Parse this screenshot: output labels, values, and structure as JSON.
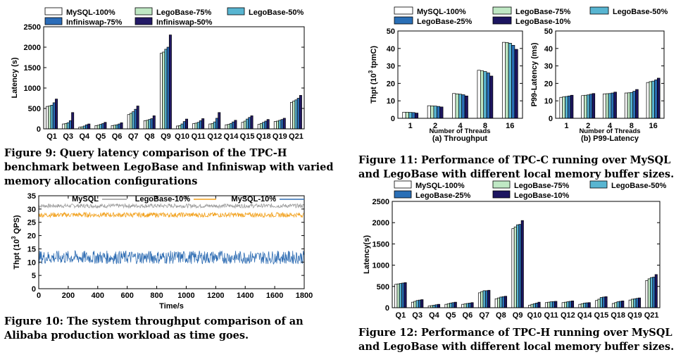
{
  "colors": {
    "MySQL-100%": "#ffffff",
    "LegoBase-75%": "#bfe8c4",
    "LegoBase-50%": "#58b5d1",
    "LegoBase-25%": "#2a6fb6",
    "LegoBase-10%": "#1c1560",
    "Infiniswap-75%": "#2b6cb8",
    "Infiniswap-50%": "#231a66",
    "MySQL": "#9a9a9a",
    "LegoBase-10% line": "#f2a11d",
    "MySQL-10% line": "#2f6db3"
  },
  "captions": {
    "fig9": "Figure 9: Query latency comparison of the TPC-H benchmark between LegoBase and Infiniswap with varied memory allocation configurations",
    "fig10": "Figure 10: The system throughput comparison of an Alibaba production workload as time goes.",
    "fig11": "Figure 11: Performance of TPC-C running over MySQL and LegoBase with different local memory buffer sizes.",
    "fig12": "Figure 12: Performance of TPC-H running over MySQL and LegoBase with different local memory buffer sizes."
  },
  "chart_data": [
    {
      "id": "fig9",
      "type": "bar",
      "ylabel": "Latency (s)",
      "xlabel": "",
      "ylim": [
        0,
        2500
      ],
      "yticks": [
        0,
        500,
        1000,
        1500,
        2000,
        2500
      ],
      "categories": [
        "Q1",
        "Q3",
        "Q4",
        "Q5",
        "Q6",
        "Q7",
        "Q8",
        "Q9",
        "Q10",
        "Q11",
        "Q12",
        "Q14",
        "Q15",
        "Q18",
        "Q19",
        "Q21"
      ],
      "series": [
        {
          "name": "MySQL-100%",
          "values": [
            550,
            120,
            40,
            80,
            80,
            350,
            200,
            1850,
            70,
            130,
            120,
            100,
            160,
            110,
            180,
            650
          ]
        },
        {
          "name": "LegoBase-75%",
          "values": [
            560,
            130,
            50,
            90,
            90,
            380,
            210,
            1880,
            80,
            140,
            130,
            110,
            190,
            130,
            190,
            680
          ]
        },
        {
          "name": "LegoBase-50%",
          "values": [
            580,
            150,
            70,
            110,
            100,
            420,
            230,
            1950,
            120,
            160,
            170,
            130,
            240,
            160,
            210,
            710
          ]
        },
        {
          "name": "Infiniswap-75%",
          "values": [
            640,
            200,
            100,
            130,
            120,
            480,
            250,
            2000,
            180,
            200,
            260,
            170,
            280,
            190,
            230,
            750
          ]
        },
        {
          "name": "Infiniswap-50%",
          "values": [
            730,
            400,
            120,
            160,
            150,
            560,
            320,
            2300,
            240,
            250,
            400,
            210,
            320,
            230,
            260,
            820
          ]
        }
      ],
      "legend": "top-left"
    },
    {
      "id": "fig10",
      "type": "line",
      "ylabel": "Thpt (10³ QPS)",
      "xlabel": "Time/s",
      "xlim": [
        0,
        1800
      ],
      "ylim": [
        0,
        35
      ],
      "xticks": [
        0,
        200,
        400,
        600,
        800,
        1000,
        1200,
        1400,
        1600,
        1800
      ],
      "yticks": [
        0,
        5,
        10,
        15,
        20,
        25,
        30,
        35
      ],
      "series": [
        {
          "name": "MySQL",
          "mean": 31.2,
          "range": [
            30,
            32.5
          ]
        },
        {
          "name": "LegoBase-10%",
          "mean": 27.8,
          "range": [
            26,
            29
          ]
        },
        {
          "name": "MySQL-10%",
          "mean": 11.8,
          "range": [
            9,
            14
          ]
        }
      ],
      "legend": "top"
    },
    {
      "id": "fig11a",
      "type": "bar",
      "title": "(a) Throughput",
      "xlabel": "Number of Threads",
      "ylabel": "Thpt (10³ tpmC)",
      "ylim": [
        0,
        50
      ],
      "yticks": [
        0,
        10,
        20,
        30,
        40,
        50
      ],
      "categories": [
        "1",
        "2",
        "4",
        "8",
        "16"
      ],
      "series": [
        {
          "name": "MySQL-100%",
          "values": [
            3.5,
            7.2,
            14.2,
            27.5,
            43.5
          ]
        },
        {
          "name": "LegoBase-75%",
          "values": [
            3.5,
            7.1,
            14.0,
            27.2,
            43.4
          ]
        },
        {
          "name": "LegoBase-50%",
          "values": [
            3.4,
            7.0,
            13.8,
            26.8,
            43.0
          ]
        },
        {
          "name": "LegoBase-25%",
          "values": [
            3.3,
            6.8,
            13.5,
            26.0,
            41.8
          ]
        },
        {
          "name": "LegoBase-10%",
          "values": [
            3.0,
            6.5,
            12.8,
            24.2,
            39.5
          ]
        }
      ],
      "legend": "top"
    },
    {
      "id": "fig11b",
      "type": "bar",
      "title": "(b) P99-Latency",
      "xlabel": "Number of Threads",
      "ylabel": "P99-Latency (ms)",
      "ylim": [
        0,
        50
      ],
      "yticks": [
        0,
        10,
        20,
        30,
        40,
        50
      ],
      "categories": [
        "1",
        "2",
        "4",
        "8",
        "16"
      ],
      "series": [
        {
          "name": "MySQL-100%",
          "values": [
            12,
            13,
            14,
            14.5,
            20.5
          ]
        },
        {
          "name": "LegoBase-75%",
          "values": [
            12.3,
            13.2,
            14.1,
            14.6,
            21
          ]
        },
        {
          "name": "LegoBase-50%",
          "values": [
            12.5,
            13.4,
            14.2,
            14.8,
            21.3
          ]
        },
        {
          "name": "LegoBase-25%",
          "values": [
            12.8,
            13.8,
            14.5,
            15.5,
            22
          ]
        },
        {
          "name": "LegoBase-10%",
          "values": [
            13.2,
            14.2,
            15,
            16.5,
            23
          ]
        }
      ]
    },
    {
      "id": "fig12",
      "type": "bar",
      "ylabel": "Latency(s)",
      "ylim": [
        0,
        2500
      ],
      "yticks": [
        0,
        500,
        1000,
        1500,
        2000,
        2500
      ],
      "categories": [
        "Q1",
        "Q3",
        "Q4",
        "Q5",
        "Q6",
        "Q7",
        "Q8",
        "Q9",
        "Q10",
        "Q11",
        "Q12",
        "Q14",
        "Q15",
        "Q18",
        "Q19",
        "Q21"
      ],
      "series": [
        {
          "name": "MySQL-100%",
          "values": [
            550,
            130,
            40,
            80,
            80,
            350,
            210,
            1860,
            60,
            120,
            120,
            80,
            170,
            100,
            180,
            640
          ]
        },
        {
          "name": "LegoBase-75%",
          "values": [
            560,
            150,
            50,
            95,
            90,
            380,
            230,
            1900,
            80,
            130,
            130,
            95,
            200,
            120,
            200,
            680
          ]
        },
        {
          "name": "LegoBase-50%",
          "values": [
            570,
            170,
            60,
            110,
            100,
            400,
            250,
            1950,
            95,
            140,
            140,
            110,
            240,
            140,
            210,
            710
          ]
        },
        {
          "name": "LegoBase-25%",
          "values": [
            580,
            180,
            70,
            120,
            110,
            400,
            260,
            1960,
            110,
            145,
            150,
            115,
            250,
            150,
            220,
            720
          ]
        },
        {
          "name": "LegoBase-10%",
          "values": [
            590,
            190,
            80,
            130,
            120,
            410,
            270,
            2050,
            130,
            150,
            160,
            120,
            260,
            160,
            230,
            780
          ]
        }
      ],
      "legend": "top"
    }
  ]
}
